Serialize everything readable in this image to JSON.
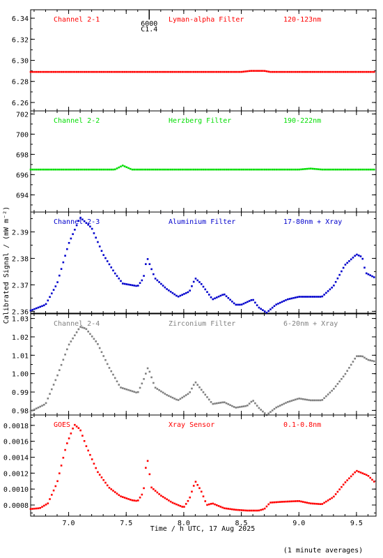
{
  "page": {
    "ylabel": "Calibrated Signal / (mW m⁻²)",
    "xlabel": "Time / h UTC, 17 Aug 2025",
    "footnote": "(1 minute averages)"
  },
  "event_marker": {
    "x": 7.7,
    "label_top": "6000",
    "label_bottom": "C1.4"
  },
  "chart_data": [
    {
      "type": "scatter",
      "title": "Channel 2-1",
      "filter": "Lyman-alpha Filter",
      "band": "120-123nm",
      "color": "#ff0000",
      "xlim": [
        6.67,
        9.67
      ],
      "ylim": [
        6.252,
        6.348
      ],
      "yticks": [
        6.26,
        6.28,
        6.3,
        6.32,
        6.34
      ],
      "yticklabels": [
        "6.26",
        "6.28",
        "6.30",
        "6.32",
        "6.34"
      ],
      "x": [
        6.67,
        7.0,
        7.5,
        8.0,
        8.5,
        8.58,
        8.6,
        8.7,
        8.75,
        9.0,
        9.5,
        9.67
      ],
      "y": [
        6.289,
        6.289,
        6.289,
        6.289,
        6.289,
        6.29,
        6.29,
        6.29,
        6.289,
        6.289,
        6.289,
        6.289
      ]
    },
    {
      "type": "scatter",
      "title": "Channel 2-2",
      "filter": "Herzberg Filter",
      "band": "190-222nm",
      "color": "#00dd00",
      "xlim": [
        6.67,
        9.67
      ],
      "ylim": [
        692.3,
        702.3
      ],
      "yticks": [
        694,
        696,
        698,
        700,
        702
      ],
      "yticklabels": [
        "694",
        "696",
        "698",
        "700",
        "702"
      ],
      "x": [
        6.67,
        7.0,
        7.4,
        7.47,
        7.55,
        8.0,
        8.5,
        9.0,
        9.1,
        9.2,
        9.5,
        9.67
      ],
      "y": [
        696.5,
        696.5,
        696.5,
        696.9,
        696.5,
        696.5,
        696.5,
        696.5,
        696.6,
        696.5,
        696.5,
        696.5
      ]
    },
    {
      "type": "scatter",
      "title": "Channel 2-3",
      "filter": "Aluminium Filter",
      "band": "17-80nm + Xray",
      "color": "#0000cc",
      "xlim": [
        6.67,
        9.67
      ],
      "ylim": [
        2.3593,
        2.3975
      ],
      "yticks": [
        2.36,
        2.37,
        2.38,
        2.39
      ],
      "yticklabels": [
        "2.36",
        "2.37",
        "2.38",
        "2.39"
      ],
      "x": [
        6.67,
        6.8,
        6.9,
        7.0,
        7.1,
        7.2,
        7.3,
        7.4,
        7.47,
        7.6,
        7.65,
        7.68,
        7.75,
        7.85,
        7.95,
        8.05,
        8.1,
        8.15,
        8.25,
        8.35,
        8.45,
        8.5,
        8.6,
        8.65,
        8.72,
        8.8,
        8.9,
        9.0,
        9.1,
        9.2,
        9.3,
        9.4,
        9.5,
        9.55,
        9.58,
        9.67
      ],
      "y": [
        2.3603,
        2.3625,
        2.3705,
        2.3855,
        2.3955,
        2.3915,
        2.3815,
        2.3745,
        2.3705,
        2.3695,
        2.3725,
        2.3805,
        2.3725,
        2.3685,
        2.3655,
        2.3675,
        2.3725,
        2.3705,
        2.3645,
        2.3665,
        2.3625,
        2.3625,
        2.3645,
        2.3615,
        2.3595,
        2.3625,
        2.3645,
        2.3655,
        2.3655,
        2.3655,
        2.3695,
        2.3775,
        2.3815,
        2.3805,
        2.3745,
        2.3725
      ]
    },
    {
      "type": "scatter",
      "title": "Channel 2-4",
      "filter": "Zirconium Filter",
      "band": "6-20nm + Xray",
      "color": "#808080",
      "xlim": [
        6.67,
        9.67
      ],
      "ylim": [
        0.9775,
        1.0325
      ],
      "yticks": [
        0.98,
        0.99,
        1.0,
        1.01,
        1.02,
        1.03
      ],
      "yticklabels": [
        "0.98",
        "0.99",
        "1.00",
        "1.01",
        "1.02",
        "1.03"
      ],
      "x": [
        6.67,
        6.8,
        6.9,
        7.0,
        7.1,
        7.15,
        7.25,
        7.35,
        7.45,
        7.6,
        7.65,
        7.69,
        7.75,
        7.85,
        7.95,
        8.05,
        8.1,
        8.15,
        8.25,
        8.35,
        8.45,
        8.55,
        8.6,
        8.65,
        8.72,
        8.8,
        8.9,
        9.0,
        9.1,
        9.2,
        9.3,
        9.4,
        9.5,
        9.55,
        9.6,
        9.67
      ],
      "y": [
        0.9795,
        0.9835,
        0.9985,
        1.0155,
        1.0255,
        1.0245,
        1.0165,
        1.0035,
        0.9925,
        0.9895,
        0.9965,
        1.0035,
        0.9925,
        0.9885,
        0.9855,
        0.9895,
        0.9955,
        0.9915,
        0.9835,
        0.9845,
        0.9815,
        0.9825,
        0.9855,
        0.9815,
        0.9775,
        0.9815,
        0.9845,
        0.9865,
        0.9855,
        0.9855,
        0.9915,
        0.9995,
        1.0095,
        1.0095,
        1.0075,
        1.0065
      ]
    },
    {
      "type": "scatter",
      "title": "GOES",
      "filter": "Xray Sensor",
      "band": "0.1-0.8nm",
      "color": "#ff0000",
      "xlim": [
        6.67,
        9.67
      ],
      "ylim": [
        0.00066,
        0.00193
      ],
      "yticks": [
        0.0008,
        0.001,
        0.0012,
        0.0014,
        0.0016,
        0.0018
      ],
      "yticklabels": [
        "0.0008",
        "0.0010",
        "0.0012",
        "0.0014",
        "0.0016",
        "0.0018"
      ],
      "x": [
        6.67,
        6.75,
        6.82,
        6.9,
        6.98,
        7.05,
        7.1,
        7.15,
        7.25,
        7.35,
        7.45,
        7.55,
        7.6,
        7.65,
        7.68,
        7.72,
        7.8,
        7.9,
        8.0,
        8.05,
        8.1,
        8.15,
        8.2,
        8.25,
        8.35,
        8.45,
        8.55,
        8.65,
        8.7,
        8.75,
        8.85,
        9.0,
        9.1,
        9.2,
        9.3,
        9.4,
        9.5,
        9.6,
        9.67
      ],
      "y": [
        0.00075,
        0.00076,
        0.00082,
        0.00108,
        0.00155,
        0.00181,
        0.00175,
        0.00155,
        0.00122,
        0.00102,
        0.00091,
        0.00086,
        0.00085,
        0.00096,
        0.00142,
        0.00102,
        0.00092,
        0.00083,
        0.00077,
        0.00088,
        0.0011,
        0.00098,
        0.0008,
        0.00082,
        0.00076,
        0.00074,
        0.00073,
        0.00073,
        0.00075,
        0.00083,
        0.00084,
        0.00085,
        0.00082,
        0.00081,
        0.0009,
        0.00108,
        0.00123,
        0.00117,
        0.00107
      ]
    }
  ],
  "xaxis": {
    "ticks": [
      7.0,
      7.5,
      8.0,
      8.5,
      9.0,
      9.5
    ],
    "ticklabels": [
      "7.0",
      "7.5",
      "8.0",
      "8.5",
      "9.0",
      "9.5"
    ]
  }
}
